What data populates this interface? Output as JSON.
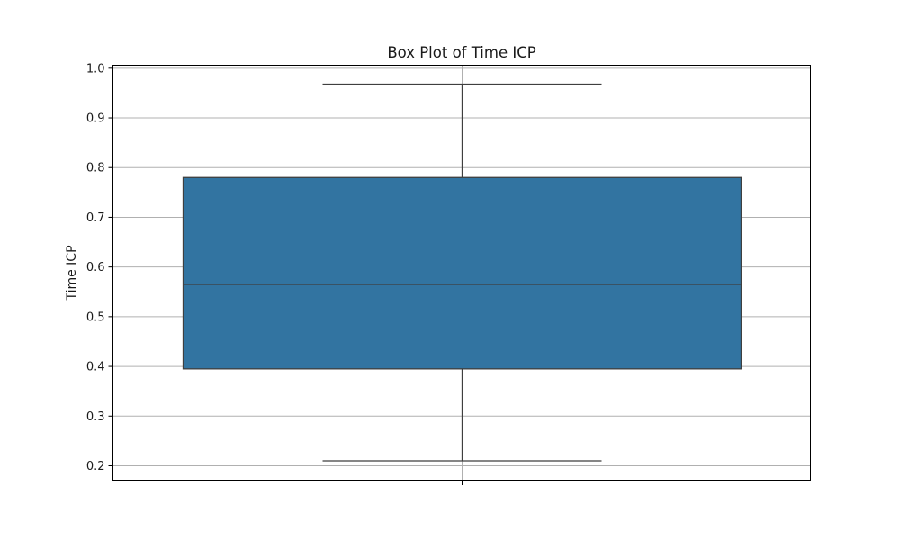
{
  "chart_data": {
    "type": "box",
    "title": "Box Plot of Time ICP",
    "xlabel": "",
    "ylabel": "Time ICP",
    "ylim": [
      0.171,
      1.006
    ],
    "yticks": [
      0.2,
      0.3,
      0.4,
      0.5,
      0.6,
      0.7,
      0.8,
      0.9,
      1.0
    ],
    "ytick_labels": [
      "0.2",
      "0.3",
      "0.4",
      "0.5",
      "0.6",
      "0.7",
      "0.8",
      "0.9",
      "1.0"
    ],
    "grid": true,
    "box": {
      "whisker_low": 0.21,
      "q1": 0.395,
      "median": 0.565,
      "q3": 0.78,
      "whisker_high": 0.968
    },
    "colors": {
      "box_fill": "#3274a1",
      "line": "#3f3f3f",
      "grid": "#b0b0b0"
    }
  }
}
